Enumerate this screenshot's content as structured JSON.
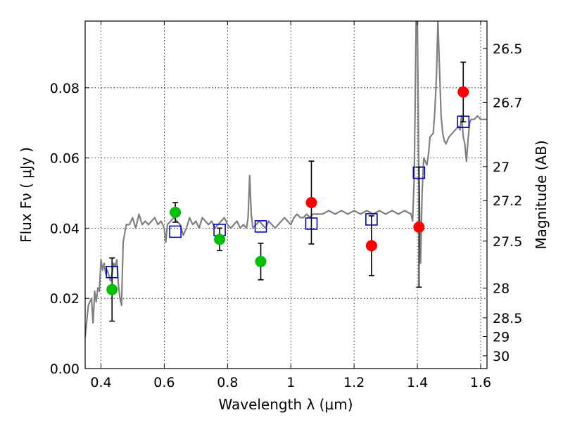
{
  "chart_data": {
    "type": "scatter",
    "xlabel": "Wavelength  λ (μm)",
    "ylabel": "Flux  Fν  ( μJy )",
    "y2label": "Magnitude (AB)",
    "xlim": [
      0.35,
      1.62
    ],
    "ylim": [
      0.0,
      0.099
    ],
    "grid": true,
    "x_ticks": [
      {
        "value": 0.4,
        "label": "0.4"
      },
      {
        "value": 0.6,
        "label": "0.6"
      },
      {
        "value": 0.8,
        "label": "0.8"
      },
      {
        "value": 1.0,
        "label": "1"
      },
      {
        "value": 1.2,
        "label": "1.2"
      },
      {
        "value": 1.4,
        "label": "1.4"
      },
      {
        "value": 1.6,
        "label": "1.6"
      }
    ],
    "y_ticks": [
      {
        "value": 0.0,
        "label": "0.00"
      },
      {
        "value": 0.02,
        "label": "0.02"
      },
      {
        "value": 0.04,
        "label": "0.04"
      },
      {
        "value": 0.06,
        "label": "0.06"
      },
      {
        "value": 0.08,
        "label": "0.08"
      }
    ],
    "y2_ticks": [
      {
        "value": 26.5,
        "label": "26.5"
      },
      {
        "value": 26.7,
        "label": "26.7"
      },
      {
        "value": 27.0,
        "label": "27"
      },
      {
        "value": 27.2,
        "label": "27.2"
      },
      {
        "value": 27.5,
        "label": "27.5"
      },
      {
        "value": 28.0,
        "label": "28"
      },
      {
        "value": 28.5,
        "label": "28.5"
      },
      {
        "value": 29.0,
        "label": "29"
      },
      {
        "value": 30.0,
        "label": "30"
      }
    ],
    "series": [
      {
        "marker": "line",
        "color": "#808080",
        "points": [
          [
            0.35,
            0.009
          ],
          [
            0.36,
            0.018
          ],
          [
            0.37,
            0.02
          ],
          [
            0.375,
            0.013
          ],
          [
            0.38,
            0.022
          ],
          [
            0.385,
            0.019
          ],
          [
            0.39,
            0.023
          ],
          [
            0.395,
            0.022
          ],
          [
            0.4,
            0.031
          ],
          [
            0.405,
            0.028
          ],
          [
            0.41,
            0.03
          ],
          [
            0.415,
            0.027
          ],
          [
            0.42,
            0.028
          ],
          [
            0.43,
            0.025
          ],
          [
            0.435,
            0.027
          ],
          [
            0.44,
            0.03
          ],
          [
            0.445,
            0.029
          ],
          [
            0.45,
            0.031
          ],
          [
            0.455,
            0.024
          ],
          [
            0.46,
            0.02
          ],
          [
            0.465,
            0.018
          ],
          [
            0.47,
            0.036
          ],
          [
            0.48,
            0.041
          ],
          [
            0.49,
            0.041
          ],
          [
            0.5,
            0.043
          ],
          [
            0.51,
            0.04
          ],
          [
            0.52,
            0.044
          ],
          [
            0.53,
            0.041
          ],
          [
            0.54,
            0.042
          ],
          [
            0.55,
            0.041
          ],
          [
            0.56,
            0.042
          ],
          [
            0.57,
            0.043
          ],
          [
            0.58,
            0.041
          ],
          [
            0.59,
            0.042
          ],
          [
            0.6,
            0.04
          ],
          [
            0.605,
            0.036
          ],
          [
            0.61,
            0.041
          ],
          [
            0.62,
            0.042
          ],
          [
            0.63,
            0.043
          ],
          [
            0.64,
            0.042
          ],
          [
            0.65,
            0.041
          ],
          [
            0.66,
            0.038
          ],
          [
            0.67,
            0.04
          ],
          [
            0.68,
            0.043
          ],
          [
            0.69,
            0.041
          ],
          [
            0.7,
            0.042
          ],
          [
            0.71,
            0.04
          ],
          [
            0.72,
            0.043
          ],
          [
            0.73,
            0.042
          ],
          [
            0.74,
            0.041
          ],
          [
            0.75,
            0.042
          ],
          [
            0.76,
            0.04
          ],
          [
            0.77,
            0.041
          ],
          [
            0.78,
            0.042
          ],
          [
            0.79,
            0.043
          ],
          [
            0.8,
            0.041
          ],
          [
            0.81,
            0.04
          ],
          [
            0.82,
            0.041
          ],
          [
            0.83,
            0.042
          ],
          [
            0.84,
            0.04
          ],
          [
            0.85,
            0.041
          ],
          [
            0.86,
            0.04
          ],
          [
            0.865,
            0.043
          ],
          [
            0.87,
            0.055
          ],
          [
            0.875,
            0.044
          ],
          [
            0.88,
            0.04
          ],
          [
            0.89,
            0.041
          ],
          [
            0.9,
            0.042
          ],
          [
            0.91,
            0.041
          ],
          [
            0.92,
            0.04
          ],
          [
            0.93,
            0.042
          ],
          [
            0.94,
            0.041
          ],
          [
            0.95,
            0.04
          ],
          [
            0.96,
            0.041
          ],
          [
            0.97,
            0.042
          ],
          [
            0.98,
            0.043
          ],
          [
            0.99,
            0.042
          ],
          [
            1.0,
            0.041
          ],
          [
            1.01,
            0.043
          ],
          [
            1.02,
            0.044
          ],
          [
            1.03,
            0.043
          ],
          [
            1.04,
            0.043
          ],
          [
            1.05,
            0.044
          ],
          [
            1.06,
            0.043
          ],
          [
            1.07,
            0.044
          ],
          [
            1.08,
            0.044
          ],
          [
            1.1,
            0.044
          ],
          [
            1.12,
            0.045
          ],
          [
            1.14,
            0.044
          ],
          [
            1.16,
            0.045
          ],
          [
            1.18,
            0.044
          ],
          [
            1.2,
            0.045
          ],
          [
            1.22,
            0.044
          ],
          [
            1.24,
            0.045
          ],
          [
            1.26,
            0.044
          ],
          [
            1.28,
            0.045
          ],
          [
            1.3,
            0.044
          ],
          [
            1.32,
            0.045
          ],
          [
            1.34,
            0.044
          ],
          [
            1.36,
            0.045
          ],
          [
            1.38,
            0.044
          ],
          [
            1.385,
            0.042
          ],
          [
            1.39,
            0.055
          ],
          [
            1.393,
            0.075
          ],
          [
            1.396,
            0.099
          ],
          [
            1.4,
            0.099
          ],
          [
            1.404,
            0.06
          ],
          [
            1.41,
            0.03
          ],
          [
            1.415,
            0.05
          ],
          [
            1.42,
            0.06
          ],
          [
            1.43,
            0.058
          ],
          [
            1.435,
            0.061
          ],
          [
            1.44,
            0.066
          ],
          [
            1.45,
            0.067
          ],
          [
            1.455,
            0.073
          ],
          [
            1.46,
            0.083
          ],
          [
            1.465,
            0.099
          ],
          [
            1.47,
            0.085
          ],
          [
            1.475,
            0.072
          ],
          [
            1.48,
            0.067
          ],
          [
            1.485,
            0.065
          ],
          [
            1.49,
            0.064
          ],
          [
            1.5,
            0.066
          ],
          [
            1.51,
            0.067
          ],
          [
            1.52,
            0.068
          ],
          [
            1.53,
            0.069
          ],
          [
            1.535,
            0.068
          ],
          [
            1.54,
            0.072
          ],
          [
            1.545,
            0.066
          ],
          [
            1.55,
            0.064
          ],
          [
            1.555,
            0.059
          ],
          [
            1.56,
            0.065
          ],
          [
            1.565,
            0.07
          ],
          [
            1.57,
            0.071
          ],
          [
            1.58,
            0.071
          ],
          [
            1.59,
            0.072
          ],
          [
            1.6,
            0.071
          ],
          [
            1.61,
            0.071
          ],
          [
            1.62,
            0.071
          ]
        ]
      },
      {
        "marker": "square",
        "color": "#0000cc",
        "points": [
          [
            0.435,
            0.0275
          ],
          [
            0.635,
            0.039
          ],
          [
            0.775,
            0.0395
          ],
          [
            0.905,
            0.0405
          ],
          [
            1.065,
            0.0413
          ],
          [
            1.255,
            0.0425
          ],
          [
            1.405,
            0.0558
          ],
          [
            1.545,
            0.0703
          ]
        ]
      },
      {
        "marker": "circle",
        "color": "#00c000",
        "points": [
          {
            "x": 0.435,
            "y": 0.0225,
            "err": 0.009
          },
          {
            "x": 0.635,
            "y": 0.0445,
            "err": 0.0028
          },
          {
            "x": 0.775,
            "y": 0.0368,
            "err": 0.0032
          },
          {
            "x": 0.905,
            "y": 0.0305,
            "err": 0.0052
          }
        ]
      },
      {
        "marker": "circle",
        "color": "#ff0000",
        "points": [
          {
            "x": 1.065,
            "y": 0.0473,
            "err": 0.0118
          },
          {
            "x": 1.255,
            "y": 0.035,
            "err": 0.0085
          },
          {
            "x": 1.405,
            "y": 0.0403,
            "err": 0.0171
          },
          {
            "x": 1.545,
            "y": 0.0788,
            "err": 0.0085
          }
        ]
      }
    ]
  }
}
